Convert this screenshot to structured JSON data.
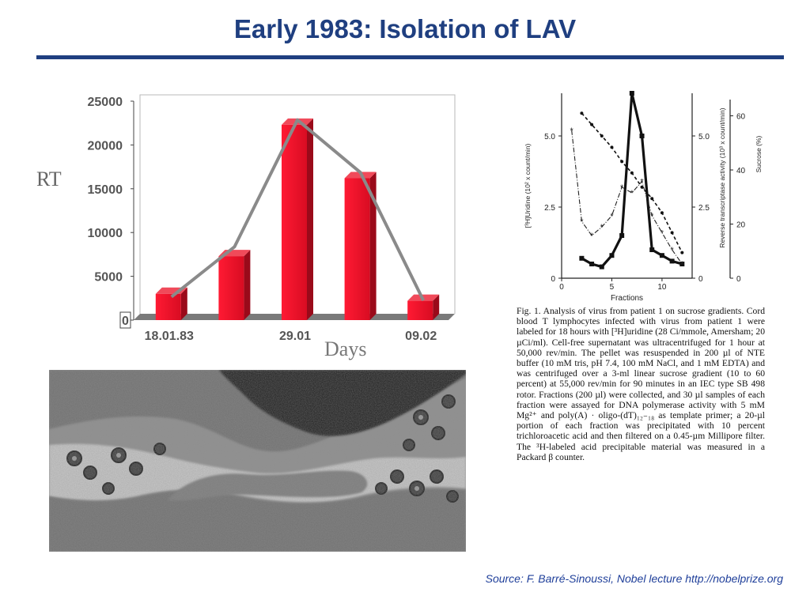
{
  "slide": {
    "title": "Early 1983: Isolation of LAV",
    "source": "Source: F. Barré-Sinoussi, Nobel lecture http://nobelprize.org"
  },
  "figure_caption": "Fig. 1. Analysis of virus from patient 1 on sucrose gradients. Cord blood T lymphocytes infected with virus from patient 1 were labeled for 18 hours with [³H]uridine (28 Ci/mmole, Amersham; 20 µCi/ml). Cell-free supernatant was ultracentrifuged for 1 hour at 50,000 rev/min. The pellet was resuspended in 200 µl of NTE buffer (10 mM tris, pH 7.4, 100 mM NaCl, and 1 mM EDTA) and was centrifuged over a 3-ml linear sucrose gradient (10 to 60 percent) at 55,000 rev/min for 90 minutes in an IEC type SB 498 rotor. Fractions (200 µl) were collected, and 30 µl samples of each fraction were assayed for DNA polymerase activity with 5 mM Mg²⁺ and poly(A) · oligo-(dT)₁₂₋₁₈ as template primer; a 20-µl portion of each fraction was precipitated with 10 percent trichloroacetic acid and then filtered on a 0.45-µm Millipore filter. The ³H-labeled acid precipitable material was measured in a Packard β counter.",
  "chart_data": [
    {
      "type": "bar",
      "ylabel": "RT",
      "xlabel": "Days",
      "categories": [
        "18.01.83",
        "",
        "29.01",
        "",
        "09.02"
      ],
      "x_tick_labels": [
        "18.01.83",
        "29.01",
        "09.02"
      ],
      "values": [
        3000,
        7300,
        22300,
        16200,
        2200
      ],
      "trend_line": [
        2300,
        8000,
        22500,
        16500,
        1900
      ],
      "yticks": [
        "25000",
        "20000",
        "15000",
        "10000",
        "5000",
        "0"
      ],
      "ylim": [
        0,
        25000
      ],
      "colors": {
        "bar": "#e8102a",
        "bar_side": "#9a0a1a",
        "trend": "#8a8a8a"
      }
    },
    {
      "type": "line",
      "x_label": "Fractions",
      "y_left_label": "[³H]Uridine (10² x count/min)",
      "y_right_label": "Reverse transcriptase activity (10³ x count/min)",
      "y_far_right_label": "Sucrose (%)",
      "x_ticks": [
        "0",
        "5",
        "10"
      ],
      "y_left_ticks": [
        "5.0",
        "2.5",
        "0"
      ],
      "y_right_ticks": [
        "5.0",
        "2.5",
        "0"
      ],
      "y_far_right_ticks": [
        "60",
        "40",
        "20",
        "0"
      ],
      "xlim": [
        0,
        13
      ],
      "ylim": [
        0,
        6.5
      ],
      "series": [
        {
          "x": [
            2,
            3,
            4,
            5,
            6,
            7,
            8,
            9,
            10,
            11,
            12
          ],
          "y": [
            0.7,
            0.5,
            0.4,
            0.8,
            1.5,
            6.5,
            5.0,
            1.0,
            0.8,
            0.6,
            0.5
          ]
        },
        {
          "x": [
            1,
            2,
            3,
            4,
            5,
            6,
            7,
            8,
            9,
            10,
            11,
            12
          ],
          "y": [
            5.2,
            2.0,
            1.5,
            1.8,
            2.2,
            3.2,
            3.0,
            3.4,
            2.2,
            1.6,
            1.0,
            0.5
          ]
        },
        {
          "x": [
            2,
            3,
            4,
            5,
            6,
            7,
            8,
            9,
            10,
            11,
            12
          ],
          "y": [
            5.8,
            5.4,
            5.0,
            4.6,
            4.1,
            3.7,
            3.2,
            2.8,
            2.3,
            1.6,
            0.9
          ]
        }
      ]
    }
  ]
}
